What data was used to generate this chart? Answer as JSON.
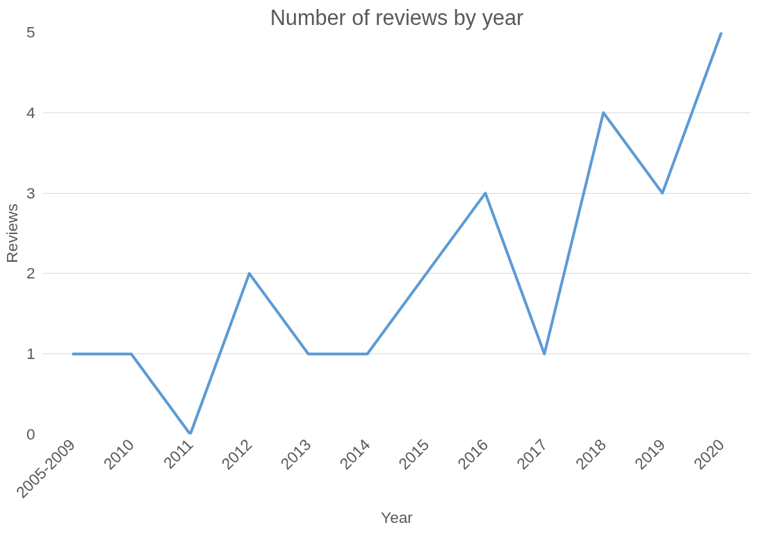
{
  "chart_data": {
    "type": "line",
    "title": "Number of reviews by year",
    "xlabel": "Year",
    "ylabel": "Reviews",
    "categories": [
      "2005-2009",
      "2010",
      "2011",
      "2012",
      "2013",
      "2014",
      "2015",
      "2016",
      "2017",
      "2018",
      "2019",
      "2020"
    ],
    "series": [
      {
        "color": "#5b9bd5",
        "values": [
          1,
          1,
          0,
          2,
          1,
          1,
          2,
          3,
          1,
          4,
          3,
          5
        ]
      }
    ],
    "ylim": [
      0,
      5
    ],
    "yticks": [
      0,
      1,
      2,
      3,
      4,
      5
    ],
    "grid": "y",
    "marker": "none",
    "line_style": "solid"
  }
}
